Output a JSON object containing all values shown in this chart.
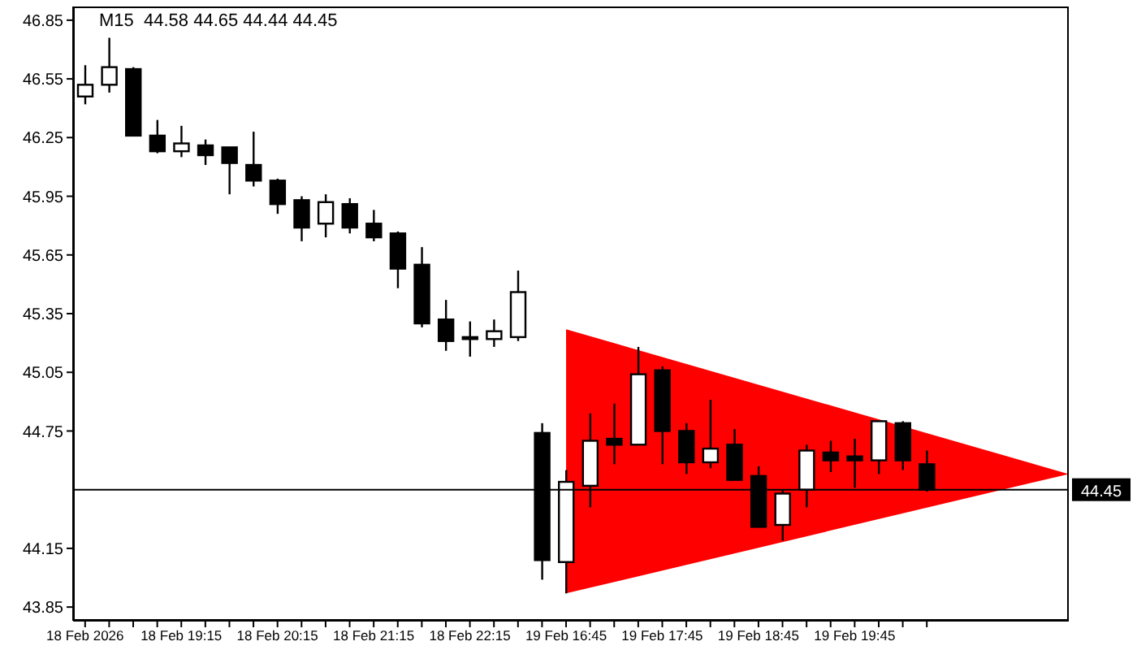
{
  "chart_data": {
    "type": "candlestick",
    "title": "M15  44.58 44.65 44.44 44.45",
    "categories": [
      "18 Feb 2026",
      null,
      null,
      null,
      "18 Feb 19:15",
      null,
      null,
      null,
      "18 Feb 20:15",
      null,
      null,
      null,
      "18 Feb 21:15",
      null,
      null,
      null,
      "18 Feb 22:15",
      null,
      null,
      null,
      "19 Feb 16:45",
      null,
      null,
      null,
      "19 Feb 17:45",
      null,
      null,
      null,
      "19 Feb 18:45",
      null,
      null,
      null,
      "19 Feb 19:45",
      null,
      null,
      null
    ],
    "ohlc": [
      [
        46.46,
        46.62,
        46.42,
        46.52
      ],
      [
        46.52,
        46.76,
        46.48,
        46.61
      ],
      [
        46.6,
        46.61,
        46.26,
        46.26
      ],
      [
        46.26,
        46.34,
        46.17,
        46.18
      ],
      [
        46.18,
        46.31,
        46.15,
        46.22
      ],
      [
        46.21,
        46.24,
        46.11,
        46.16
      ],
      [
        46.2,
        46.2,
        45.96,
        46.12
      ],
      [
        46.11,
        46.28,
        46.0,
        46.03
      ],
      [
        46.03,
        46.04,
        45.86,
        45.91
      ],
      [
        45.93,
        45.95,
        45.72,
        45.79
      ],
      [
        45.81,
        45.96,
        45.74,
        45.92
      ],
      [
        45.91,
        45.94,
        45.76,
        45.79
      ],
      [
        45.81,
        45.88,
        45.72,
        45.74
      ],
      [
        45.76,
        45.77,
        45.48,
        45.58
      ],
      [
        45.6,
        45.69,
        45.28,
        45.3
      ],
      [
        45.32,
        45.42,
        45.16,
        45.21
      ],
      [
        45.23,
        45.31,
        45.13,
        45.22
      ],
      [
        45.22,
        45.32,
        45.18,
        45.26
      ],
      [
        45.23,
        45.57,
        45.21,
        45.46
      ],
      [
        44.74,
        44.79,
        43.99,
        44.09
      ],
      [
        44.08,
        44.55,
        43.92,
        44.49
      ],
      [
        44.47,
        44.84,
        44.36,
        44.7
      ],
      [
        44.71,
        44.89,
        44.58,
        44.68
      ],
      [
        44.68,
        45.18,
        44.68,
        45.04
      ],
      [
        45.06,
        45.08,
        44.58,
        44.75
      ],
      [
        44.75,
        44.79,
        44.53,
        44.59
      ],
      [
        44.59,
        44.91,
        44.56,
        44.66
      ],
      [
        44.68,
        44.76,
        44.5,
        44.5
      ],
      [
        44.52,
        44.57,
        44.26,
        44.26
      ],
      [
        44.27,
        44.45,
        44.19,
        44.43
      ],
      [
        44.45,
        44.68,
        44.36,
        44.65
      ],
      [
        44.64,
        44.7,
        44.54,
        44.6
      ],
      [
        44.62,
        44.71,
        44.46,
        44.6
      ],
      [
        44.6,
        44.8,
        44.53,
        44.8
      ],
      [
        44.79,
        44.8,
        44.55,
        44.6
      ],
      [
        44.58,
        44.65,
        44.44,
        44.45
      ]
    ],
    "colors": [
      "#ffffff",
      "#ffffff",
      "#000000",
      "#000000",
      "#ffffff",
      "#000000",
      "#000000",
      "#000000",
      "#000000",
      "#000000",
      "#ffffff",
      "#000000",
      "#000000",
      "#000000",
      "#000000",
      "#000000",
      "#000000",
      "#ffffff",
      "#ffffff",
      "#000000",
      "#ffffff",
      "#ffffff",
      "#000000",
      "#ffffff",
      "#000000",
      "#000000",
      "#ffffff",
      "#000000",
      "#000000",
      "#ffffff",
      "#ffffff",
      "#000000",
      "#000000",
      "#ffffff",
      "#000000",
      "#000000"
    ],
    "ylim": [
      43.78,
      46.92
    ],
    "yticks": [
      43.85,
      44.15,
      44.75,
      45.05,
      45.35,
      45.65,
      45.95,
      46.25,
      46.55,
      46.85
    ],
    "ref_lines": [
      {
        "axis": "y",
        "value": 44.45,
        "label": "44.45",
        "color": "#000000"
      }
    ],
    "grid": false,
    "legend": false
  }
}
